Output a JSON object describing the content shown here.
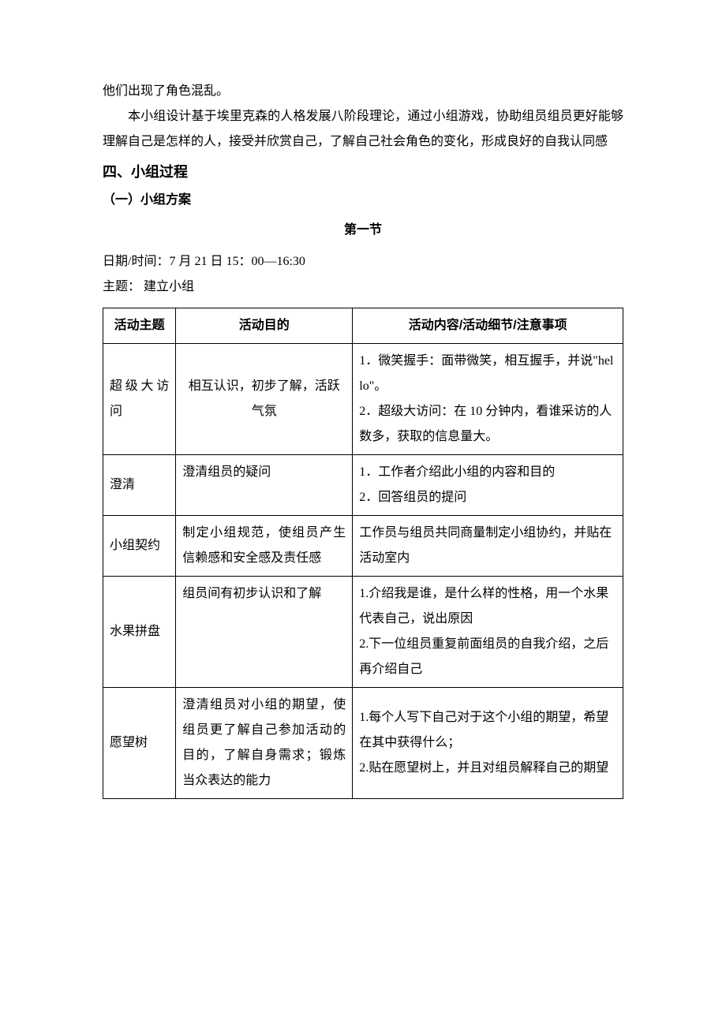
{
  "colors": {
    "background": "#ffffff",
    "text": "#000000",
    "border": "#000000"
  },
  "typography": {
    "body_font": "SimSun",
    "heading_font": "SimHei",
    "body_size_pt": 12,
    "heading1_size_pt": 14,
    "line_height": 2.0
  },
  "paragraphs": {
    "p1": "他们出现了角色混乱。",
    "p2": "本小组设计基于埃里克森的人格发展八阶段理论，通过小组游戏，协助组员组员更好能够理解自己是怎样的人，接受并欣赏自己，了解自己社会角色的变化，形成良好的自我认同感"
  },
  "headings": {
    "h1": "四、小组过程",
    "h2": "（一）小组方案",
    "section": "第一节"
  },
  "meta": {
    "datetime": "日期/时间：7 月 21 日 15：00—16:30",
    "theme": "主题：  建立小组"
  },
  "table": {
    "columns": [
      "活动主题",
      "活动目的",
      "活动内容/活动细节/注意事项"
    ],
    "col_widths_pct": [
      14,
      34,
      52
    ],
    "rows": [
      {
        "topic": "超级大访问",
        "purpose": "相互认识，初步了解，活跃气氛",
        "purpose_centered": true,
        "content": "1．微笑握手：面带微笑，相互握手，并说\"hello\"。\n2．超级大访问：在 10 分钟内，看谁采访的人数多，获取的信息量大。"
      },
      {
        "topic": "澄清",
        "purpose": "澄清组员的疑问",
        "purpose_centered": false,
        "content": "1．工作者介绍此小组的内容和目的\n2．回答组员的提问"
      },
      {
        "topic": "小组契约",
        "purpose": "制定小组规范，使组员产生信赖感和安全感及责任感",
        "purpose_centered": false,
        "content": "工作员与组员共同商量制定小组协约，并贴在活动室内"
      },
      {
        "topic": "水果拼盘",
        "purpose": "组员间有初步认识和了解",
        "purpose_centered": false,
        "content": "1.介绍我是谁，是什么样的性格，用一个水果代表自己，说出原因\n2.下一位组员重复前面组员的自我介绍，之后再介绍自己"
      },
      {
        "topic": "愿望树",
        "purpose": "澄清组员对小组的期望，使组员更了解自己参加活动的目的，了解自身需求；锻炼当众表达的能力",
        "purpose_centered": false,
        "content": "1.每个人写下自己对于这个小组的期望，希望在其中获得什么；\n2.贴在愿望树上，并且对组员解释自己的期望"
      }
    ]
  }
}
